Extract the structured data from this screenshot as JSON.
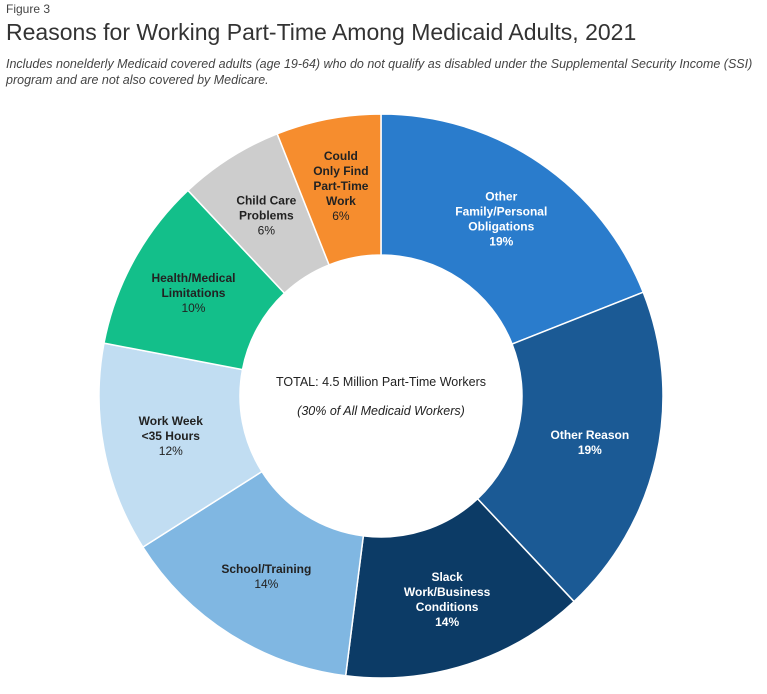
{
  "figure_label": "Figure 3",
  "title": "Reasons for Working Part-Time Among Medicaid Adults, 2021",
  "subtitle": "Includes nonelderly Medicaid covered adults (age 19-64) who do not qualify as disabled under the Supplemental Security Income (SSI) program and are not also covered by Medicare.",
  "center": {
    "total": "TOTAL: 4.5 Million Part-Time Workers",
    "note": "(30% of All Medicaid Workers)"
  },
  "chart_data": {
    "type": "pie",
    "title": "Reasons for Working Part-Time Among Medicaid Adults, 2021",
    "donut": true,
    "unit": "%",
    "slices": [
      {
        "label": "Other Family/Personal Obligations",
        "label_lines": [
          "Other",
          "Family/Personal",
          "Obligations"
        ],
        "value": 19,
        "value_label": "19%",
        "color": "#2a7ccc",
        "text_color": "#ffffff"
      },
      {
        "label": "Other Reason",
        "label_lines": [
          "Other Reason"
        ],
        "value": 19,
        "value_label": "19%",
        "color": "#1b5a95",
        "text_color": "#ffffff"
      },
      {
        "label": "Slack Work/Business Conditions",
        "label_lines": [
          "Slack",
          "Work/Business",
          "Conditions"
        ],
        "value": 14,
        "value_label": "14%",
        "color": "#0c3b66",
        "text_color": "#ffffff"
      },
      {
        "label": "School/Training",
        "label_lines": [
          "School/Training"
        ],
        "value": 14,
        "value_label": "14%",
        "color": "#80b7e2",
        "text_color": "#222222"
      },
      {
        "label": "Work Week <35 Hours",
        "label_lines": [
          "Work Week",
          "<35 Hours"
        ],
        "value": 12,
        "value_label": "12%",
        "color": "#c1ddf2",
        "text_color": "#222222"
      },
      {
        "label": "Health/Medical Limitations",
        "label_lines": [
          "Health/Medical",
          "Limitations"
        ],
        "value": 10,
        "value_label": "10%",
        "color": "#13bf8a",
        "text_color": "#222222"
      },
      {
        "label": "Child Care Problems",
        "label_lines": [
          "Child Care",
          "Problems"
        ],
        "value": 6,
        "value_label": "6%",
        "color": "#cdcdcd",
        "text_color": "#222222"
      },
      {
        "label": "Could Only Find Part-Time Work",
        "label_lines": [
          "Could",
          "Only Find",
          "Part-Time",
          "Work"
        ],
        "value": 6,
        "value_label": "6%",
        "color": "#f68d2e",
        "text_color": "#222222"
      }
    ]
  }
}
